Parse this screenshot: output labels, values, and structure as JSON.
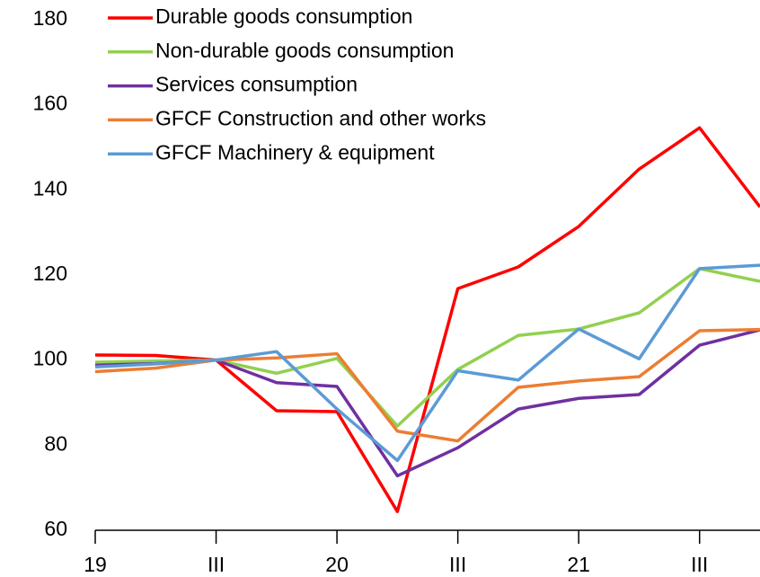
{
  "chart_data": {
    "type": "line",
    "categories": [
      "19",
      null,
      "III",
      null,
      "20",
      null,
      "III",
      null,
      "21",
      null,
      "III",
      null
    ],
    "series": [
      {
        "name": "Durable goods consumption",
        "color": "#ff0000",
        "values": [
          101.2,
          101.1,
          100,
          88.1,
          87.9,
          64.4,
          116.8,
          121.9,
          131.4,
          144.9,
          154.6,
          136
        ]
      },
      {
        "name": "Non-durable goods consumption",
        "color": "#92d050",
        "values": [
          99.5,
          99.8,
          100,
          96.9,
          100.4,
          84.5,
          97.8,
          105.8,
          107.3,
          111.1,
          121.5,
          118.5
        ]
      },
      {
        "name": "Services consumption",
        "color": "#7030a0",
        "values": [
          98.8,
          99.2,
          100,
          94.7,
          93.8,
          72.8,
          79.4,
          88.5,
          91,
          91.9,
          103.5,
          107.1
        ]
      },
      {
        "name": "GFCF Construction and other works",
        "color": "#ed7d31",
        "values": [
          97.3,
          98.1,
          100,
          100.5,
          101.5,
          83.3,
          81,
          93.6,
          95.1,
          96.1,
          106.9,
          107.2
        ]
      },
      {
        "name": "GFCF Machinery & equipment",
        "color": "#5b9bd5",
        "values": [
          98.4,
          99.1,
          100,
          102,
          88.5,
          76.4,
          97.5,
          95.3,
          107.3,
          100.3,
          121.5,
          122.3
        ]
      }
    ],
    "ylim": [
      60,
      180
    ],
    "yticks": [
      60,
      80,
      100,
      120,
      140,
      160,
      180
    ]
  }
}
